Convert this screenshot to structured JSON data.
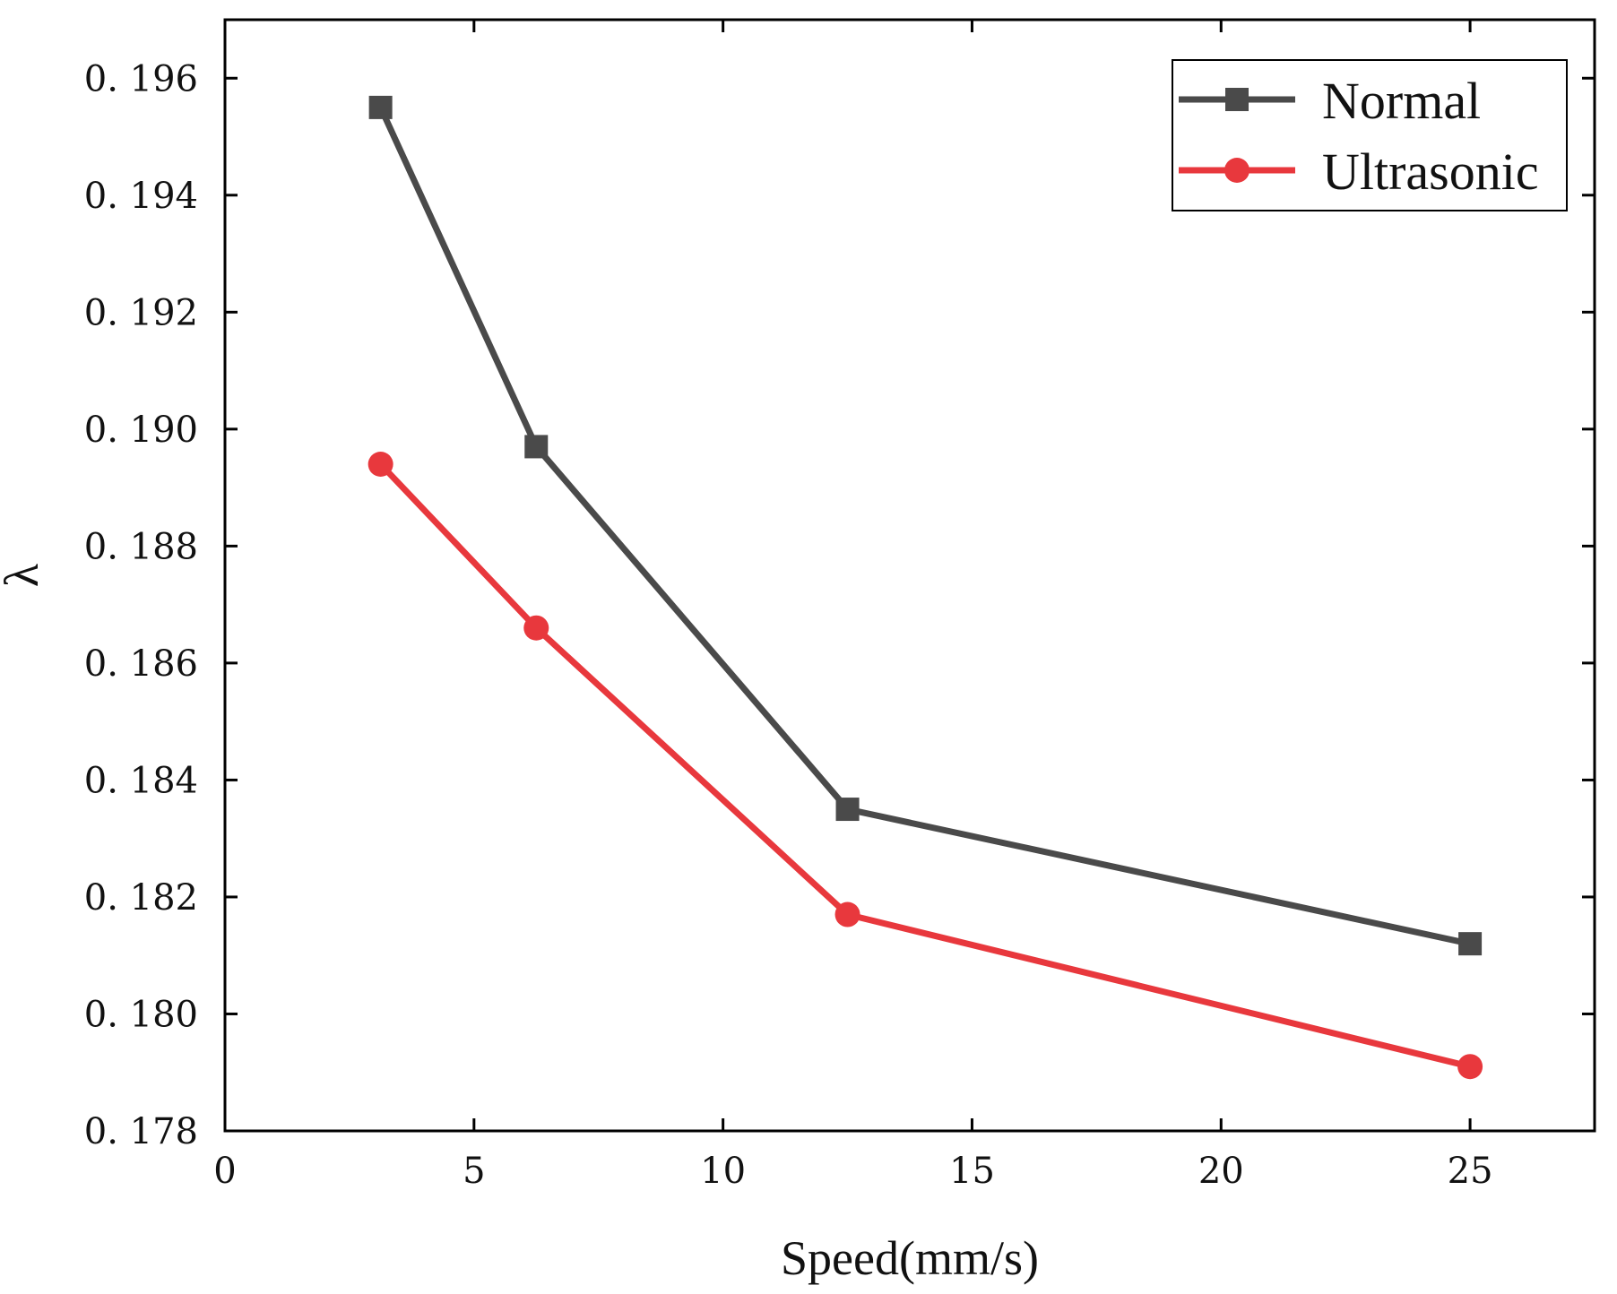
{
  "chart_data": {
    "type": "line",
    "title": "",
    "xlabel": "Speed(mm/s)",
    "ylabel": "λ",
    "xlim": [
      0,
      27.5
    ],
    "ylim": [
      0.178,
      0.197
    ],
    "xticks": [
      0,
      5,
      10,
      15,
      20,
      25
    ],
    "xtick_labels": [
      "0",
      "5",
      "10",
      "15",
      "20",
      "25"
    ],
    "yticks": [
      0.178,
      0.18,
      0.182,
      0.184,
      0.186,
      0.188,
      0.19,
      0.192,
      0.194,
      0.196
    ],
    "ytick_labels": [
      "0. 178",
      "0. 180",
      "0. 182",
      "0. 184",
      "0. 186",
      "0. 188",
      "0. 190",
      "0. 192",
      "0. 194",
      "0. 196"
    ],
    "grid": false,
    "legend_position": "top-right",
    "x": [
      3.125,
      6.25,
      12.5,
      25
    ],
    "series": [
      {
        "name": "Normal",
        "marker": "square",
        "color": "#4a4a4a",
        "values": [
          0.1955,
          0.1897,
          0.1835,
          0.1812
        ]
      },
      {
        "name": "Ultrasonic",
        "marker": "circle",
        "color": "#e8383d",
        "values": [
          0.1894,
          0.1866,
          0.1817,
          0.1791
        ]
      }
    ]
  }
}
